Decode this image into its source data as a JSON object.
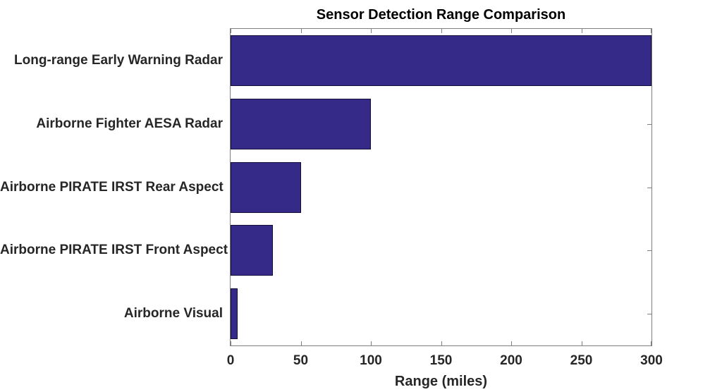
{
  "chart_data": {
    "type": "bar",
    "orientation": "horizontal",
    "title": "Sensor Detection Range Comparison",
    "xlabel": "Range (miles)",
    "ylabel": "",
    "categories": [
      "Long-range Early Warning Radar",
      "Airborne Fighter AESA Radar",
      "Airborne PIRATE IRST Rear Aspect",
      "Airborne PIRATE IRST Front Aspect",
      "Airborne Visual"
    ],
    "values": [
      300,
      100,
      50,
      30,
      5
    ],
    "xlim": [
      0,
      300
    ],
    "xticks": [
      0,
      50,
      100,
      150,
      200,
      250,
      300
    ],
    "grid": false,
    "legend": "none",
    "bar_color": "#352A87",
    "bar_edge_color": "#12103a",
    "axis_color": "#7f7f7f",
    "text_color": "#262626",
    "title_color": "#000000",
    "background_color": "#ffffff"
  }
}
